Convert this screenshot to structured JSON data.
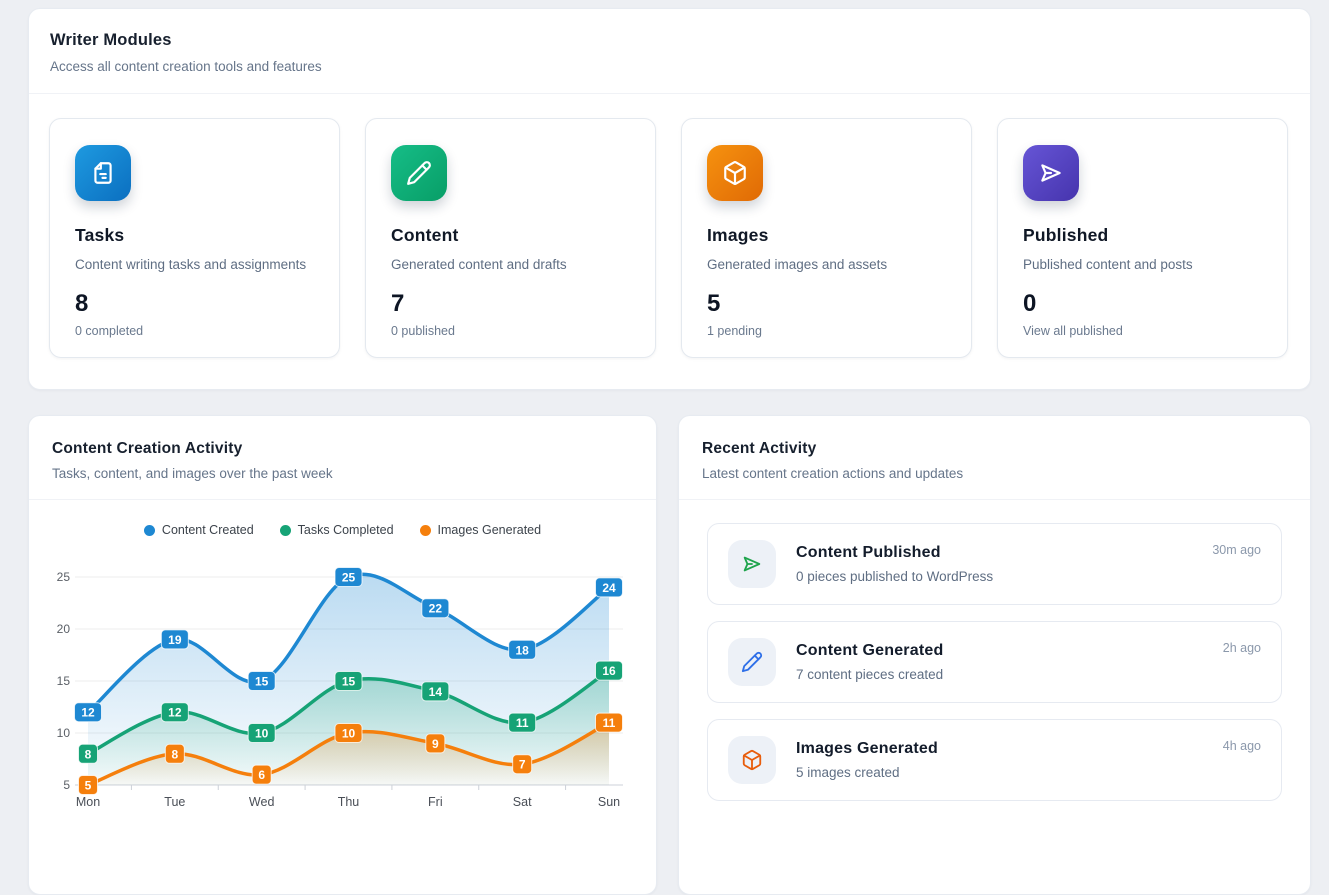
{
  "modules_panel": {
    "title": "Writer Modules",
    "subtitle": "Access all content creation tools and features",
    "cards": [
      {
        "icon": "file-icon",
        "title": "Tasks",
        "description": "Content writing tasks and assignments",
        "count": "8",
        "footnote": "0 completed",
        "color_from": "#1e9ae0",
        "color_to": "#0b6fc0"
      },
      {
        "icon": "pencil-icon",
        "title": "Content",
        "description": "Generated content and drafts",
        "count": "7",
        "footnote": "0 published",
        "color_from": "#16bd87",
        "color_to": "#089e67"
      },
      {
        "icon": "cube-icon",
        "title": "Images",
        "description": "Generated images and assets",
        "count": "5",
        "footnote": "1 pending",
        "color_from": "#f6920f",
        "color_to": "#e06a05"
      },
      {
        "icon": "send-icon",
        "title": "Published",
        "description": "Published content and posts",
        "count": "0",
        "footnote": "View all published",
        "color_from": "#6655d6",
        "color_to": "#4634ad"
      }
    ]
  },
  "activity_panel": {
    "title": "Content Creation Activity",
    "subtitle": "Tasks, content, and images over the past week"
  },
  "chart_data": {
    "type": "line",
    "title": "Content Creation Activity",
    "categories": [
      "Mon",
      "Tue",
      "Wed",
      "Thu",
      "Fri",
      "Sat",
      "Sun"
    ],
    "series": [
      {
        "name": "Content Created",
        "color": "#1e88d2",
        "values": [
          12,
          19,
          15,
          25,
          22,
          18,
          24
        ]
      },
      {
        "name": "Tasks Completed",
        "color": "#16a376",
        "values": [
          8,
          12,
          10,
          15,
          14,
          11,
          16
        ]
      },
      {
        "name": "Images Generated",
        "color": "#f57f0c",
        "values": [
          5,
          8,
          6,
          10,
          9,
          7,
          11
        ]
      }
    ],
    "xlabel": "",
    "ylabel": "",
    "ylim": [
      5,
      25
    ],
    "yticks": [
      5,
      10,
      15,
      20,
      25
    ],
    "grid": true,
    "legend_position": "top",
    "smooth": true,
    "area": true,
    "data_labels": true
  },
  "recent_panel": {
    "title": "Recent Activity",
    "subtitle": "Latest content creation actions and updates",
    "items": [
      {
        "icon": "send-icon",
        "icon_color": "#1ea44c",
        "title": "Content Published",
        "description": "0 pieces published to WordPress",
        "time": "30m ago"
      },
      {
        "icon": "pencil-icon",
        "icon_color": "#2e6fe8",
        "title": "Content Generated",
        "description": "7 content pieces created",
        "time": "2h ago"
      },
      {
        "icon": "cube-icon",
        "icon_color": "#e85d0c",
        "title": "Images Generated",
        "description": "5 images created",
        "time": "4h ago"
      }
    ]
  }
}
